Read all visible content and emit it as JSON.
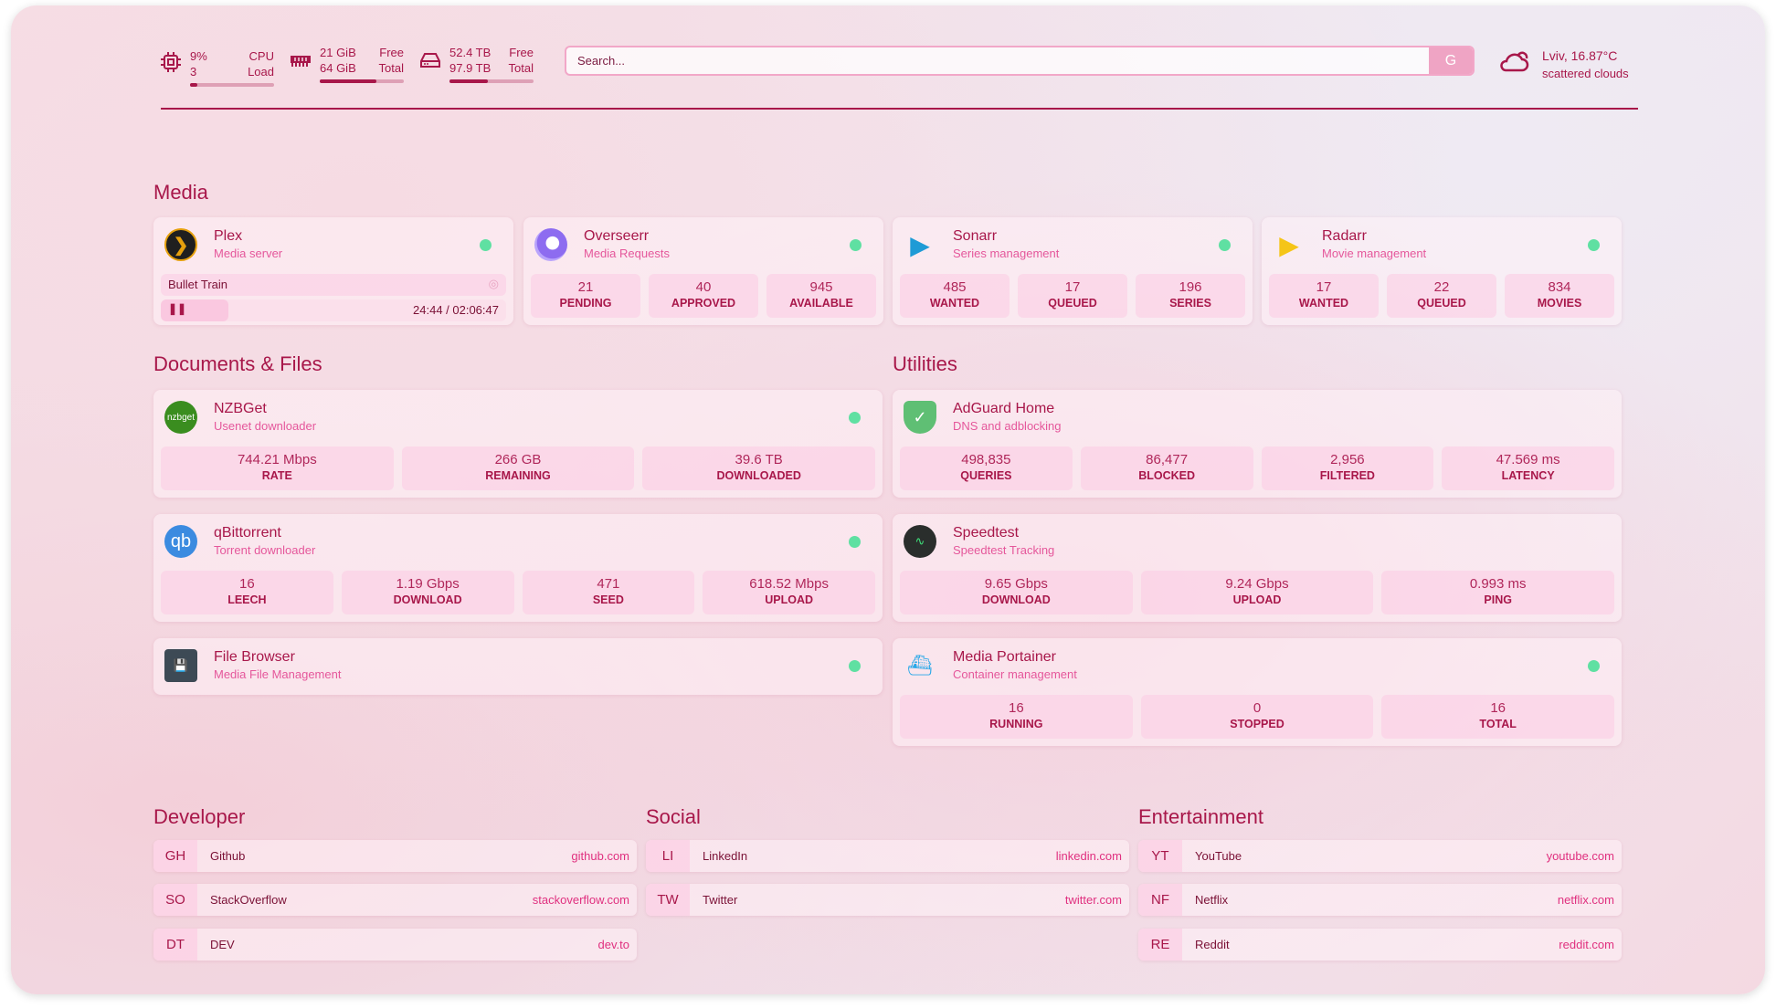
{
  "header": {
    "cpu": {
      "icon": "cpu-icon",
      "value": "9%",
      "sub": "3",
      "label1": "CPU",
      "label2": "Load",
      "usage_pct": 9
    },
    "memory": {
      "icon": "memory-icon",
      "free": "21 GiB",
      "total": "64 GiB",
      "label1": "Free",
      "label2": "Total",
      "usage_pct": 67
    },
    "disk": {
      "icon": "disk-icon",
      "free": "52.4 TB",
      "total": "97.9 TB",
      "label1": "Free",
      "label2": "Total",
      "usage_pct": 46
    },
    "search": {
      "placeholder": "Search...",
      "button": "G"
    },
    "weather": {
      "icon": "cloud-icon",
      "location": "Lviv, 16.87°C",
      "condition": "scattered clouds"
    }
  },
  "colors": {
    "accent": "#a8174a",
    "subtitle": "#e5579b",
    "status": "#5fe0a2"
  },
  "sections": {
    "media": "Media",
    "docs": "Documents & Files",
    "utilities": "Utilities",
    "developer": "Developer",
    "social": "Social",
    "entertainment": "Entertainment"
  },
  "media": [
    {
      "title": "Plex",
      "sub": "Media server",
      "icon": "plex-icon",
      "now_playing": {
        "title": "Bullet Train",
        "time": "24:44 / 02:06:47",
        "progress_pct": 19.5
      }
    },
    {
      "title": "Overseerr",
      "sub": "Media Requests",
      "icon": "overseerr-icon",
      "stats": [
        {
          "v": "21",
          "l": "PENDING"
        },
        {
          "v": "40",
          "l": "APPROVED"
        },
        {
          "v": "945",
          "l": "AVAILABLE"
        }
      ]
    },
    {
      "title": "Sonarr",
      "sub": "Series management",
      "icon": "sonarr-icon",
      "stats": [
        {
          "v": "485",
          "l": "WANTED"
        },
        {
          "v": "17",
          "l": "QUEUED"
        },
        {
          "v": "196",
          "l": "SERIES"
        }
      ]
    },
    {
      "title": "Radarr",
      "sub": "Movie management",
      "icon": "radarr-icon",
      "stats": [
        {
          "v": "17",
          "l": "WANTED"
        },
        {
          "v": "22",
          "l": "QUEUED"
        },
        {
          "v": "834",
          "l": "MOVIES"
        }
      ]
    }
  ],
  "docs": [
    {
      "title": "NZBGet",
      "sub": "Usenet downloader",
      "icon": "nzbget-icon",
      "icon_text": "nzbget",
      "stats": [
        {
          "v": "744.21 Mbps",
          "l": "RATE"
        },
        {
          "v": "266 GB",
          "l": "REMAINING"
        },
        {
          "v": "39.6 TB",
          "l": "DOWNLOADED"
        }
      ]
    },
    {
      "title": "qBittorrent",
      "sub": "Torrent downloader",
      "icon": "qbittorrent-icon",
      "icon_text": "qb",
      "stats": [
        {
          "v": "16",
          "l": "LEECH"
        },
        {
          "v": "1.19 Gbps",
          "l": "DOWNLOAD"
        },
        {
          "v": "471",
          "l": "SEED"
        },
        {
          "v": "618.52 Mbps",
          "l": "UPLOAD"
        }
      ]
    },
    {
      "title": "File Browser",
      "sub": "Media File Management",
      "icon": "filebrowser-icon"
    }
  ],
  "utilities": [
    {
      "title": "AdGuard Home",
      "sub": "DNS and adblocking",
      "icon": "adguard-shield-icon",
      "stats": [
        {
          "v": "498,835",
          "l": "QUERIES"
        },
        {
          "v": "86,477",
          "l": "BLOCKED"
        },
        {
          "v": "2,956",
          "l": "FILTERED"
        },
        {
          "v": "47.569 ms",
          "l": "LATENCY"
        }
      ]
    },
    {
      "title": "Speedtest",
      "sub": "Speedtest Tracking",
      "icon": "speedtest-icon",
      "stats": [
        {
          "v": "9.65 Gbps",
          "l": "DOWNLOAD"
        },
        {
          "v": "9.24 Gbps",
          "l": "UPLOAD"
        },
        {
          "v": "0.993 ms",
          "l": "PING"
        }
      ]
    },
    {
      "title": "Media Portainer",
      "sub": "Container management",
      "icon": "portainer-icon",
      "stats": [
        {
          "v": "16",
          "l": "RUNNING"
        },
        {
          "v": "0",
          "l": "STOPPED"
        },
        {
          "v": "16",
          "l": "TOTAL"
        }
      ]
    }
  ],
  "bookmarks": {
    "developer": [
      {
        "abbr": "GH",
        "name": "Github",
        "url": "github.com"
      },
      {
        "abbr": "SO",
        "name": "StackOverflow",
        "url": "stackoverflow.com"
      },
      {
        "abbr": "DT",
        "name": "DEV",
        "url": "dev.to"
      }
    ],
    "social": [
      {
        "abbr": "LI",
        "name": "LinkedIn",
        "url": "linkedin.com"
      },
      {
        "abbr": "TW",
        "name": "Twitter",
        "url": "twitter.com"
      }
    ],
    "entertainment": [
      {
        "abbr": "YT",
        "name": "YouTube",
        "url": "youtube.com"
      },
      {
        "abbr": "NF",
        "name": "Netflix",
        "url": "netflix.com"
      },
      {
        "abbr": "RE",
        "name": "Reddit",
        "url": "reddit.com"
      }
    ]
  }
}
